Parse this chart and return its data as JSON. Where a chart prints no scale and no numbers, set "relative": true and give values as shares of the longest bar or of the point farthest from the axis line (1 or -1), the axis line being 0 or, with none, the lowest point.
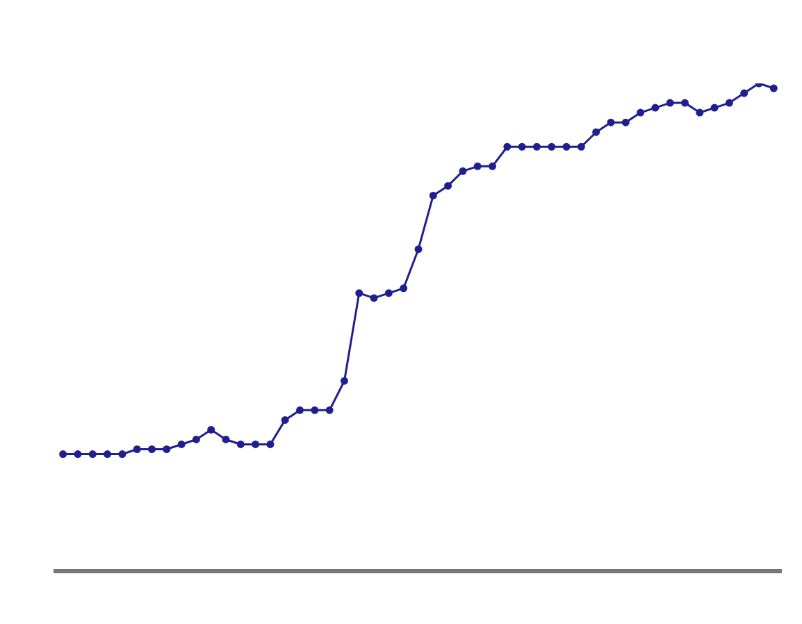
{
  "chart_data": {
    "type": "line",
    "relative": true,
    "marker": "circle",
    "categories": [
      null,
      null,
      null,
      null,
      null,
      null,
      null,
      null,
      null,
      null,
      null,
      null,
      null,
      null,
      null,
      null,
      null,
      null,
      null,
      null,
      null,
      null,
      null,
      null,
      null,
      null,
      null,
      null,
      null,
      null,
      null,
      null,
      null,
      null,
      null,
      null,
      null,
      null,
      null,
      null,
      null,
      null,
      null,
      null,
      null,
      null,
      null,
      null,
      null
    ],
    "series": [
      {
        "color": "#1f1f8f",
        "values": [
          0.24,
          0.24,
          0.24,
          0.24,
          0.24,
          0.25,
          0.25,
          0.25,
          0.26,
          0.27,
          0.29,
          0.27,
          0.26,
          0.26,
          0.26,
          0.31,
          0.33,
          0.33,
          0.33,
          0.39,
          0.57,
          0.56,
          0.57,
          0.58,
          0.66,
          0.77,
          0.79,
          0.82,
          0.83,
          0.83,
          0.87,
          0.87,
          0.87,
          0.87,
          0.87,
          0.87,
          0.9,
          0.92,
          0.92,
          0.94,
          0.95,
          0.96,
          0.96,
          0.94,
          0.95,
          0.96,
          0.98,
          1,
          0.99
        ]
      }
    ]
  }
}
